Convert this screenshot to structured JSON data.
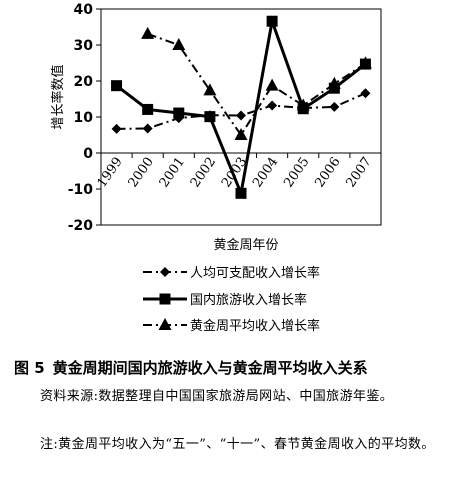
{
  "chart_data": {
    "type": "line",
    "title": "",
    "xlabel": "黄金周年份",
    "ylabel": "增长率数值",
    "categories": [
      "1999",
      "2000",
      "2001",
      "2002",
      "2003",
      "2004",
      "2005",
      "2006",
      "2007"
    ],
    "ylim": [
      -20,
      40
    ],
    "yticks": [
      "40",
      "30",
      "20",
      "10",
      "0",
      "-10",
      "-20"
    ],
    "grid": false,
    "legend_position": "bottom",
    "series": [
      {
        "name": "人均可支配收入增长率",
        "marker": "diamond",
        "line_style": "dash-dot",
        "x": [
          "1999",
          "2000",
          "2001",
          "2002",
          "2003",
          "2004",
          "2005",
          "2006",
          "2007"
        ],
        "values": [
          6.7,
          6.8,
          9.7,
          10.5,
          10.4,
          13.2,
          12.5,
          12.8,
          16.6
        ]
      },
      {
        "name": "国内旅游收入增长率",
        "marker": "square",
        "line_style": "solid",
        "x": [
          "1999",
          "2000",
          "2001",
          "2002",
          "2003",
          "2004",
          "2005",
          "2006",
          "2007"
        ],
        "values": [
          18.7,
          12.1,
          11.1,
          10.1,
          -11.2,
          36.6,
          12.3,
          18.0,
          24.7
        ]
      },
      {
        "name": "黄金周平均收入增长率",
        "marker": "triangle",
        "line_style": "dash-dot",
        "x": [
          "2000",
          "2001",
          "2002",
          "2003",
          "2004",
          "2005",
          "2006",
          "2007"
        ],
        "values": [
          33.1,
          30.0,
          17.4,
          5.0,
          18.7,
          13.2,
          19.2,
          24.9
        ]
      }
    ]
  },
  "caption": {
    "number": "图 5",
    "title": "黄金周期间国内旅游收入与黄金周平均收入关系"
  },
  "source_note": "资料来源:数据整理自中国国家旅游局网站、中国旅游年鉴。",
  "footnote": "注:黄金周平均收入为“五一”、“十一”、春节黄金周收入的平均数。"
}
